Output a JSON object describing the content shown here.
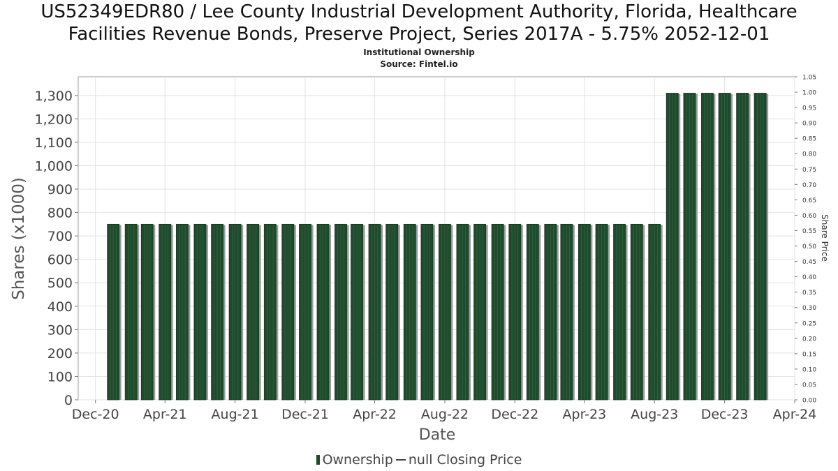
{
  "chart_data": {
    "type": "bar",
    "title_line1": "US52349EDR80 / Lee County Industrial Development Authority, Florida, Healthcare",
    "title_line2": "Facilities Revenue Bonds, Preserve Project, Series 2017A - 5.75% 2052-12-01",
    "subtitle": "Institutional Ownership",
    "source": "Source: Fintel.io",
    "xlabel": "Date",
    "ylabel": "Shares (x1000)",
    "y2label": "Share Price",
    "ylim": [
      0,
      1380
    ],
    "y2lim": [
      0,
      1.05
    ],
    "xlim": [
      "2020-11-01",
      "2024-04-01"
    ],
    "yticks": [
      0,
      100,
      200,
      300,
      400,
      500,
      600,
      700,
      800,
      900,
      1000,
      1100,
      1200,
      1300
    ],
    "y2ticks": [
      "0.00",
      "0.05",
      "0.10",
      "0.15",
      "0.20",
      "0.25",
      "0.30",
      "0.35",
      "0.40",
      "0.45",
      "0.50",
      "0.55",
      "0.60",
      "0.65",
      "0.70",
      "0.75",
      "0.80",
      "0.85",
      "0.90",
      "0.95",
      "1.00",
      "1.05"
    ],
    "xticks": [
      {
        "label": "Dec-20",
        "date": "2020-12-01"
      },
      {
        "label": "Apr-21",
        "date": "2021-04-01"
      },
      {
        "label": "Aug-21",
        "date": "2021-08-01"
      },
      {
        "label": "Dec-21",
        "date": "2021-12-01"
      },
      {
        "label": "Apr-22",
        "date": "2022-04-01"
      },
      {
        "label": "Aug-22",
        "date": "2022-08-01"
      },
      {
        "label": "Dec-22",
        "date": "2022-12-01"
      },
      {
        "label": "Apr-23",
        "date": "2023-04-01"
      },
      {
        "label": "Aug-23",
        "date": "2023-08-01"
      },
      {
        "label": "Dec-23",
        "date": "2023-12-01"
      },
      {
        "label": "Apr-24",
        "date": "2024-04-01"
      }
    ],
    "grid": true,
    "series": [
      {
        "name": "Ownership",
        "color": "#1f4a2c",
        "x": [
          "2021-01-01",
          "2021-02-01",
          "2021-03-01",
          "2021-04-01",
          "2021-05-01",
          "2021-06-01",
          "2021-07-01",
          "2021-08-01",
          "2021-09-01",
          "2021-10-01",
          "2021-11-01",
          "2021-12-01",
          "2022-01-01",
          "2022-02-01",
          "2022-03-01",
          "2022-04-01",
          "2022-05-01",
          "2022-06-01",
          "2022-07-01",
          "2022-08-01",
          "2022-09-01",
          "2022-10-01",
          "2022-11-01",
          "2022-12-01",
          "2023-01-01",
          "2023-02-01",
          "2023-03-01",
          "2023-04-01",
          "2023-05-01",
          "2023-06-01",
          "2023-07-01",
          "2023-08-01",
          "2023-09-01",
          "2023-10-01",
          "2023-11-01",
          "2023-12-01",
          "2024-01-01",
          "2024-02-01"
        ],
        "values": [
          750,
          750,
          750,
          750,
          750,
          750,
          750,
          750,
          750,
          750,
          750,
          750,
          750,
          750,
          750,
          750,
          750,
          750,
          750,
          750,
          750,
          750,
          750,
          750,
          750,
          750,
          750,
          750,
          750,
          750,
          750,
          750,
          1310,
          1310,
          1310,
          1310,
          1310,
          1310
        ]
      },
      {
        "name": "null Closing Price",
        "color": "#444444",
        "values": []
      }
    ]
  }
}
